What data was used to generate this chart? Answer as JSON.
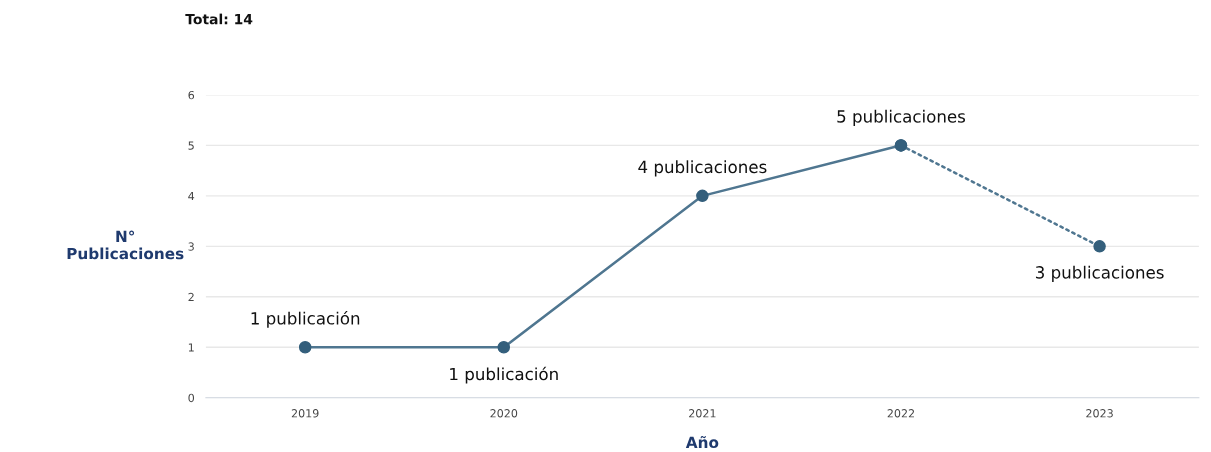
{
  "chart_data": {
    "type": "line",
    "title": "Total: 14",
    "xlabel": "Año",
    "ylabel": "N°\nPublicaciones",
    "categories": [
      "2019",
      "2020",
      "2021",
      "2022",
      "2023"
    ],
    "series": [
      {
        "color": "#4f7690",
        "values": [
          1,
          1,
          4,
          5,
          null
        ],
        "value_labels": [
          "1 publicación",
          "1 publicación",
          "4 publicaciones",
          "5 publicaciones",
          null
        ],
        "line_style": "solid",
        "marker": "circle"
      },
      {
        "color": "#4f7690",
        "values": [
          null,
          null,
          null,
          5,
          3
        ],
        "value_labels": [
          null,
          null,
          null,
          null,
          "3 publicaciones"
        ],
        "line_style": "dotted",
        "marker": "circle"
      }
    ],
    "ylim": [
      0,
      6
    ],
    "yticks": [
      0,
      1,
      2,
      3,
      4,
      5,
      6
    ],
    "grid": "y",
    "legend": false
  }
}
